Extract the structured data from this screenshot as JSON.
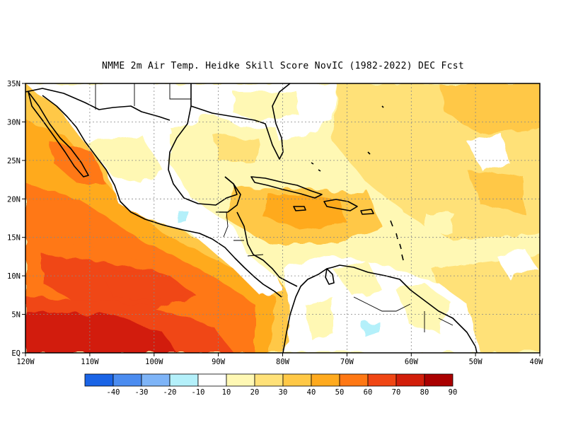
{
  "title": "NMME  2m Air Temp. Heidke Skill Score NovIC (1982-2022) DEC Fcst",
  "lat_labels": [
    "35N",
    "30N",
    "25N",
    "20N",
    "15N",
    "10N",
    "5N",
    "EQ"
  ],
  "lon_labels": [
    "120W",
    "110W",
    "100W",
    "90W",
    "80W",
    "70W",
    "60W",
    "50W",
    "40W"
  ],
  "colorbar": {
    "labels": [
      "-40",
      "-30",
      "-20",
      "-10",
      "10",
      "20",
      "30",
      "40",
      "50",
      "60",
      "70",
      "80",
      "90"
    ],
    "colors": [
      "#1a64e6",
      "#4b8cf0",
      "#7eb4f7",
      "#b4f0fa",
      "#ffffff",
      "#fff8b4",
      "#ffe178",
      "#ffc846",
      "#ffaa1e",
      "#ff7814",
      "#f04614",
      "#d21e0a",
      "#aa0000"
    ]
  },
  "map": {
    "region": "Eastern Pacific, Gulf of Mexico, Caribbean, northern South America",
    "lat_range": [
      0,
      35
    ],
    "lon_range": [
      -120,
      -40
    ],
    "gridlines": "dashed",
    "coastlines": true
  }
}
